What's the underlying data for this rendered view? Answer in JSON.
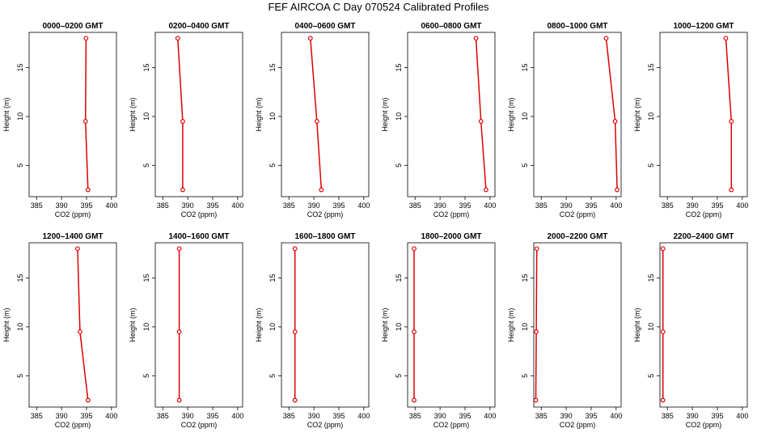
{
  "figure": {
    "title": "FEF AIRCOA C  Day 070524  Calibrated Profiles"
  },
  "chart_data": [
    {
      "type": "line",
      "title": "0000–0200 GMT",
      "xlabel": "CO2 (ppm)",
      "ylabel": "Height (m)",
      "xlim": [
        383.5,
        401
      ],
      "ylim": [
        1.8,
        18.6
      ],
      "x_ticks": [
        385,
        390,
        395,
        400
      ],
      "y_ticks": [
        5,
        10,
        15
      ],
      "series": [
        {
          "x": [
            395.3,
            394.8,
            394.9
          ],
          "y": [
            2.5,
            9.5,
            18.0
          ],
          "color": "#dd0000"
        }
      ]
    },
    {
      "type": "line",
      "title": "0200–0400 GMT",
      "xlabel": "CO2 (ppm)",
      "ylabel": "Height (m)",
      "xlim": [
        383.5,
        401
      ],
      "ylim": [
        1.8,
        18.6
      ],
      "x_ticks": [
        385,
        390,
        395,
        400
      ],
      "y_ticks": [
        5,
        10,
        15
      ],
      "series": [
        {
          "x": [
            389.0,
            389.0,
            388.0
          ],
          "y": [
            2.5,
            9.5,
            18.0
          ],
          "color": "#dd0000"
        }
      ]
    },
    {
      "type": "line",
      "title": "0400–0600 GMT",
      "xlabel": "CO2 (ppm)",
      "ylabel": "Height (m)",
      "xlim": [
        383.5,
        401
      ],
      "ylim": [
        1.8,
        18.6
      ],
      "x_ticks": [
        385,
        390,
        395,
        400
      ],
      "y_ticks": [
        5,
        10,
        15
      ],
      "series": [
        {
          "x": [
            391.5,
            390.6,
            389.3
          ],
          "y": [
            2.5,
            9.5,
            18.0
          ],
          "color": "#dd0000"
        }
      ]
    },
    {
      "type": "line",
      "title": "0600–0800 GMT",
      "xlabel": "CO2 (ppm)",
      "ylabel": "Height (m)",
      "xlim": [
        383.5,
        401
      ],
      "ylim": [
        1.8,
        18.6
      ],
      "x_ticks": [
        385,
        390,
        395,
        400
      ],
      "y_ticks": [
        5,
        10,
        15
      ],
      "series": [
        {
          "x": [
            399.2,
            398.2,
            397.2
          ],
          "y": [
            2.5,
            9.5,
            18.0
          ],
          "color": "#dd0000"
        }
      ]
    },
    {
      "type": "line",
      "title": "0800–1000 GMT",
      "xlabel": "CO2 (ppm)",
      "ylabel": "Height (m)",
      "xlim": [
        383.5,
        401
      ],
      "ylim": [
        1.8,
        18.6
      ],
      "x_ticks": [
        385,
        390,
        395,
        400
      ],
      "y_ticks": [
        5,
        10,
        15
      ],
      "series": [
        {
          "x": [
            400.2,
            399.8,
            398.0
          ],
          "y": [
            2.5,
            9.5,
            18.0
          ],
          "color": "#dd0000"
        }
      ]
    },
    {
      "type": "line",
      "title": "1000–1200 GMT",
      "xlabel": "CO2 (ppm)",
      "ylabel": "Height (m)",
      "xlim": [
        383.5,
        401
      ],
      "ylim": [
        1.8,
        18.6
      ],
      "x_ticks": [
        385,
        390,
        395,
        400
      ],
      "y_ticks": [
        5,
        10,
        15
      ],
      "series": [
        {
          "x": [
            397.8,
            397.8,
            396.7
          ],
          "y": [
            2.5,
            9.5,
            18.0
          ],
          "color": "#dd0000"
        }
      ]
    },
    {
      "type": "line",
      "title": "1200–1400 GMT",
      "xlabel": "CO2 (ppm)",
      "ylabel": "Height (m)",
      "xlim": [
        383.5,
        401
      ],
      "ylim": [
        1.8,
        18.6
      ],
      "x_ticks": [
        385,
        390,
        395,
        400
      ],
      "y_ticks": [
        5,
        10,
        15
      ],
      "series": [
        {
          "x": [
            395.3,
            393.7,
            393.2
          ],
          "y": [
            2.5,
            9.5,
            18.0
          ],
          "color": "#dd0000"
        }
      ]
    },
    {
      "type": "line",
      "title": "1400–1600 GMT",
      "xlabel": "CO2 (ppm)",
      "ylabel": "Height (m)",
      "xlim": [
        383.5,
        401
      ],
      "ylim": [
        1.8,
        18.6
      ],
      "x_ticks": [
        385,
        390,
        395,
        400
      ],
      "y_ticks": [
        5,
        10,
        15
      ],
      "series": [
        {
          "x": [
            388.3,
            388.3,
            388.3
          ],
          "y": [
            2.5,
            9.5,
            18.0
          ],
          "color": "#dd0000"
        }
      ]
    },
    {
      "type": "line",
      "title": "1600–1800 GMT",
      "xlabel": "CO2 (ppm)",
      "ylabel": "Height (m)",
      "xlim": [
        383.5,
        401
      ],
      "ylim": [
        1.8,
        18.6
      ],
      "x_ticks": [
        385,
        390,
        395,
        400
      ],
      "y_ticks": [
        5,
        10,
        15
      ],
      "series": [
        {
          "x": [
            386.2,
            386.2,
            386.2
          ],
          "y": [
            2.5,
            9.5,
            18.0
          ],
          "color": "#dd0000"
        }
      ]
    },
    {
      "type": "line",
      "title": "1800–2000 GMT",
      "xlabel": "CO2 (ppm)",
      "ylabel": "Height (m)",
      "xlim": [
        383.5,
        401
      ],
      "ylim": [
        1.8,
        18.6
      ],
      "x_ticks": [
        385,
        390,
        395,
        400
      ],
      "y_ticks": [
        5,
        10,
        15
      ],
      "series": [
        {
          "x": [
            384.8,
            384.8,
            384.8
          ],
          "y": [
            2.5,
            9.5,
            18.0
          ],
          "color": "#dd0000"
        }
      ]
    },
    {
      "type": "line",
      "title": "2000–2200 GMT",
      "xlabel": "CO2 (ppm)",
      "ylabel": "Height (m)",
      "xlim": [
        383.5,
        401
      ],
      "ylim": [
        1.8,
        18.6
      ],
      "x_ticks": [
        385,
        390,
        395,
        400
      ],
      "y_ticks": [
        5,
        10,
        15
      ],
      "series": [
        {
          "x": [
            383.9,
            384.0,
            384.1
          ],
          "y": [
            2.5,
            9.5,
            18.0
          ],
          "color": "#dd0000"
        }
      ]
    },
    {
      "type": "line",
      "title": "2200–2400 GMT",
      "xlabel": "CO2 (ppm)",
      "ylabel": "Height (m)",
      "xlim": [
        383.5,
        401
      ],
      "ylim": [
        1.8,
        18.6
      ],
      "x_ticks": [
        385,
        390,
        395,
        400
      ],
      "y_ticks": [
        5,
        10,
        15
      ],
      "series": [
        {
          "x": [
            384.1,
            384.1,
            384.1
          ],
          "y": [
            2.5,
            9.5,
            18.0
          ],
          "color": "#dd0000"
        }
      ]
    }
  ]
}
